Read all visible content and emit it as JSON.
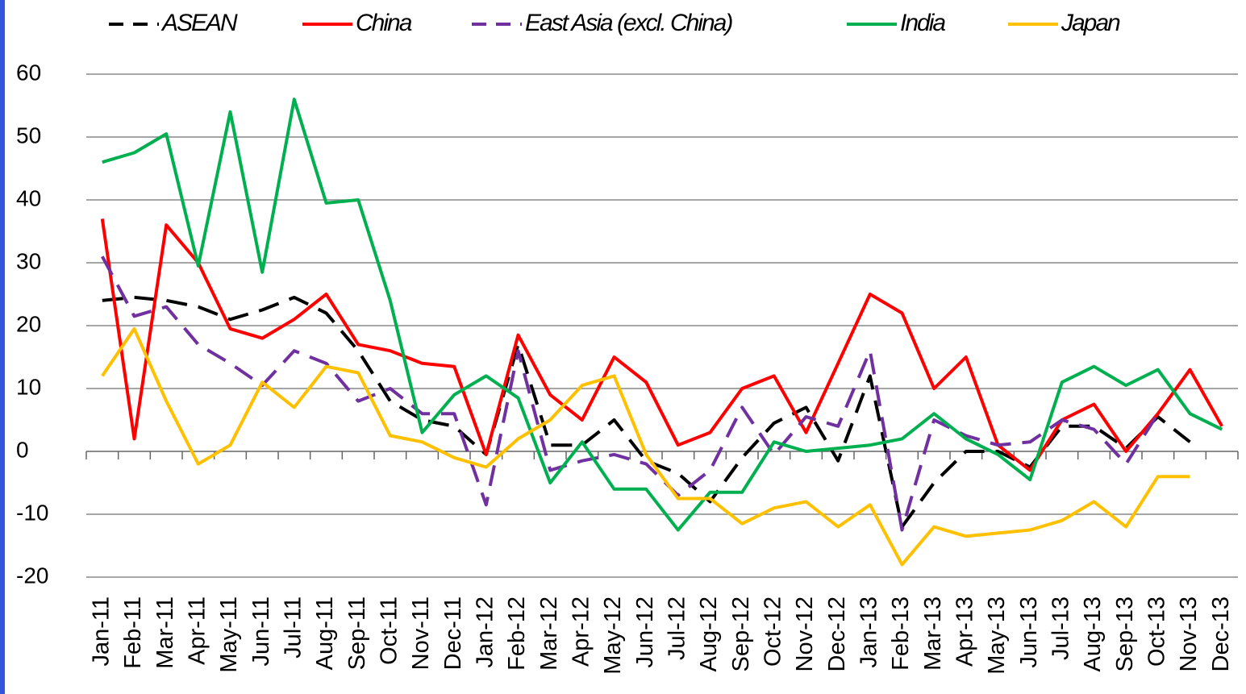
{
  "chart_data": {
    "type": "line",
    "categories": [
      "Jan-11",
      "Feb-11",
      "Mar-11",
      "Apr-11",
      "May-11",
      "Jun-11",
      "Jul-11",
      "Aug-11",
      "Sep-11",
      "Oct-11",
      "Nov-11",
      "Dec-11",
      "Jan-12",
      "Feb-12",
      "Mar-12",
      "Apr-12",
      "May-12",
      "Jun-12",
      "Jul-12",
      "Aug-12",
      "Sep-12",
      "Oct-12",
      "Nov-12",
      "Dec-12",
      "Jan-13",
      "Feb-13",
      "Mar-13",
      "Apr-13",
      "May-13",
      "Jun-13",
      "Jul-13",
      "Aug-13",
      "Sep-13",
      "Oct-13",
      "Nov-13",
      "Dec-13"
    ],
    "series": [
      {
        "name": "ASEAN",
        "color": "#000000",
        "dash": true,
        "values": [
          24,
          24.5,
          24,
          23,
          21,
          22.5,
          24.5,
          22,
          16,
          8,
          5,
          4,
          -0.5,
          17,
          1,
          1,
          5,
          -1.5,
          -3.5,
          -8,
          -1,
          4.5,
          7,
          -1.5,
          12,
          -12,
          -5,
          0,
          0,
          -2.5,
          4,
          4,
          0.5,
          5.5,
          1.5,
          null
        ]
      },
      {
        "name": "China",
        "color": "#ff0000",
        "dash": false,
        "values": [
          37,
          2,
          36,
          30,
          19.5,
          18,
          21,
          25,
          17,
          16,
          14,
          13.5,
          -0.5,
          18.5,
          9,
          5,
          15,
          11,
          1,
          3,
          10,
          12,
          3,
          14,
          25,
          22,
          10,
          15,
          1,
          -3,
          5,
          7.5,
          0,
          6,
          13,
          4
        ]
      },
      {
        "name": "East Asia (excl. China)",
        "color": "#7030a0",
        "dash": true,
        "values": [
          31,
          21.5,
          23,
          17,
          14,
          10.5,
          16,
          14,
          8,
          10,
          6,
          6,
          -8.5,
          16,
          -3,
          -1.5,
          -0.5,
          -2,
          -7,
          -3,
          7,
          -0.5,
          5.5,
          4,
          16,
          -12.5,
          5,
          2.5,
          1,
          1.5,
          5,
          3.5,
          -2,
          6,
          null,
          null
        ]
      },
      {
        "name": "India",
        "color": "#00b050",
        "dash": false,
        "values": [
          46,
          47.5,
          50.5,
          29.5,
          54,
          28.5,
          56,
          39.5,
          40,
          24,
          3,
          9,
          12,
          8.5,
          -5,
          1.5,
          -6,
          -6,
          -12.5,
          -6.5,
          -6.5,
          1.5,
          0,
          0.5,
          1,
          2,
          6,
          2,
          -0.5,
          -4.5,
          11,
          13.5,
          10.5,
          13,
          6,
          3.5
        ]
      },
      {
        "name": "Japan",
        "color": "#ffc000",
        "dash": false,
        "values": [
          12,
          19.5,
          8,
          -2,
          1,
          11,
          7,
          13.5,
          12.5,
          2.5,
          1.5,
          -1,
          -2.5,
          2,
          5,
          10.5,
          12,
          -0.5,
          -7.5,
          -7.5,
          -11.5,
          -9,
          -8,
          -12,
          -8.5,
          -18,
          -12,
          -13.5,
          -13,
          -12.5,
          -11,
          -8,
          -12,
          -4,
          -4,
          null
        ]
      }
    ],
    "ylim": [
      -20,
      60
    ],
    "yticks": [
      -20,
      -10,
      0,
      10,
      20,
      30,
      40,
      50,
      60
    ],
    "grid": true
  }
}
